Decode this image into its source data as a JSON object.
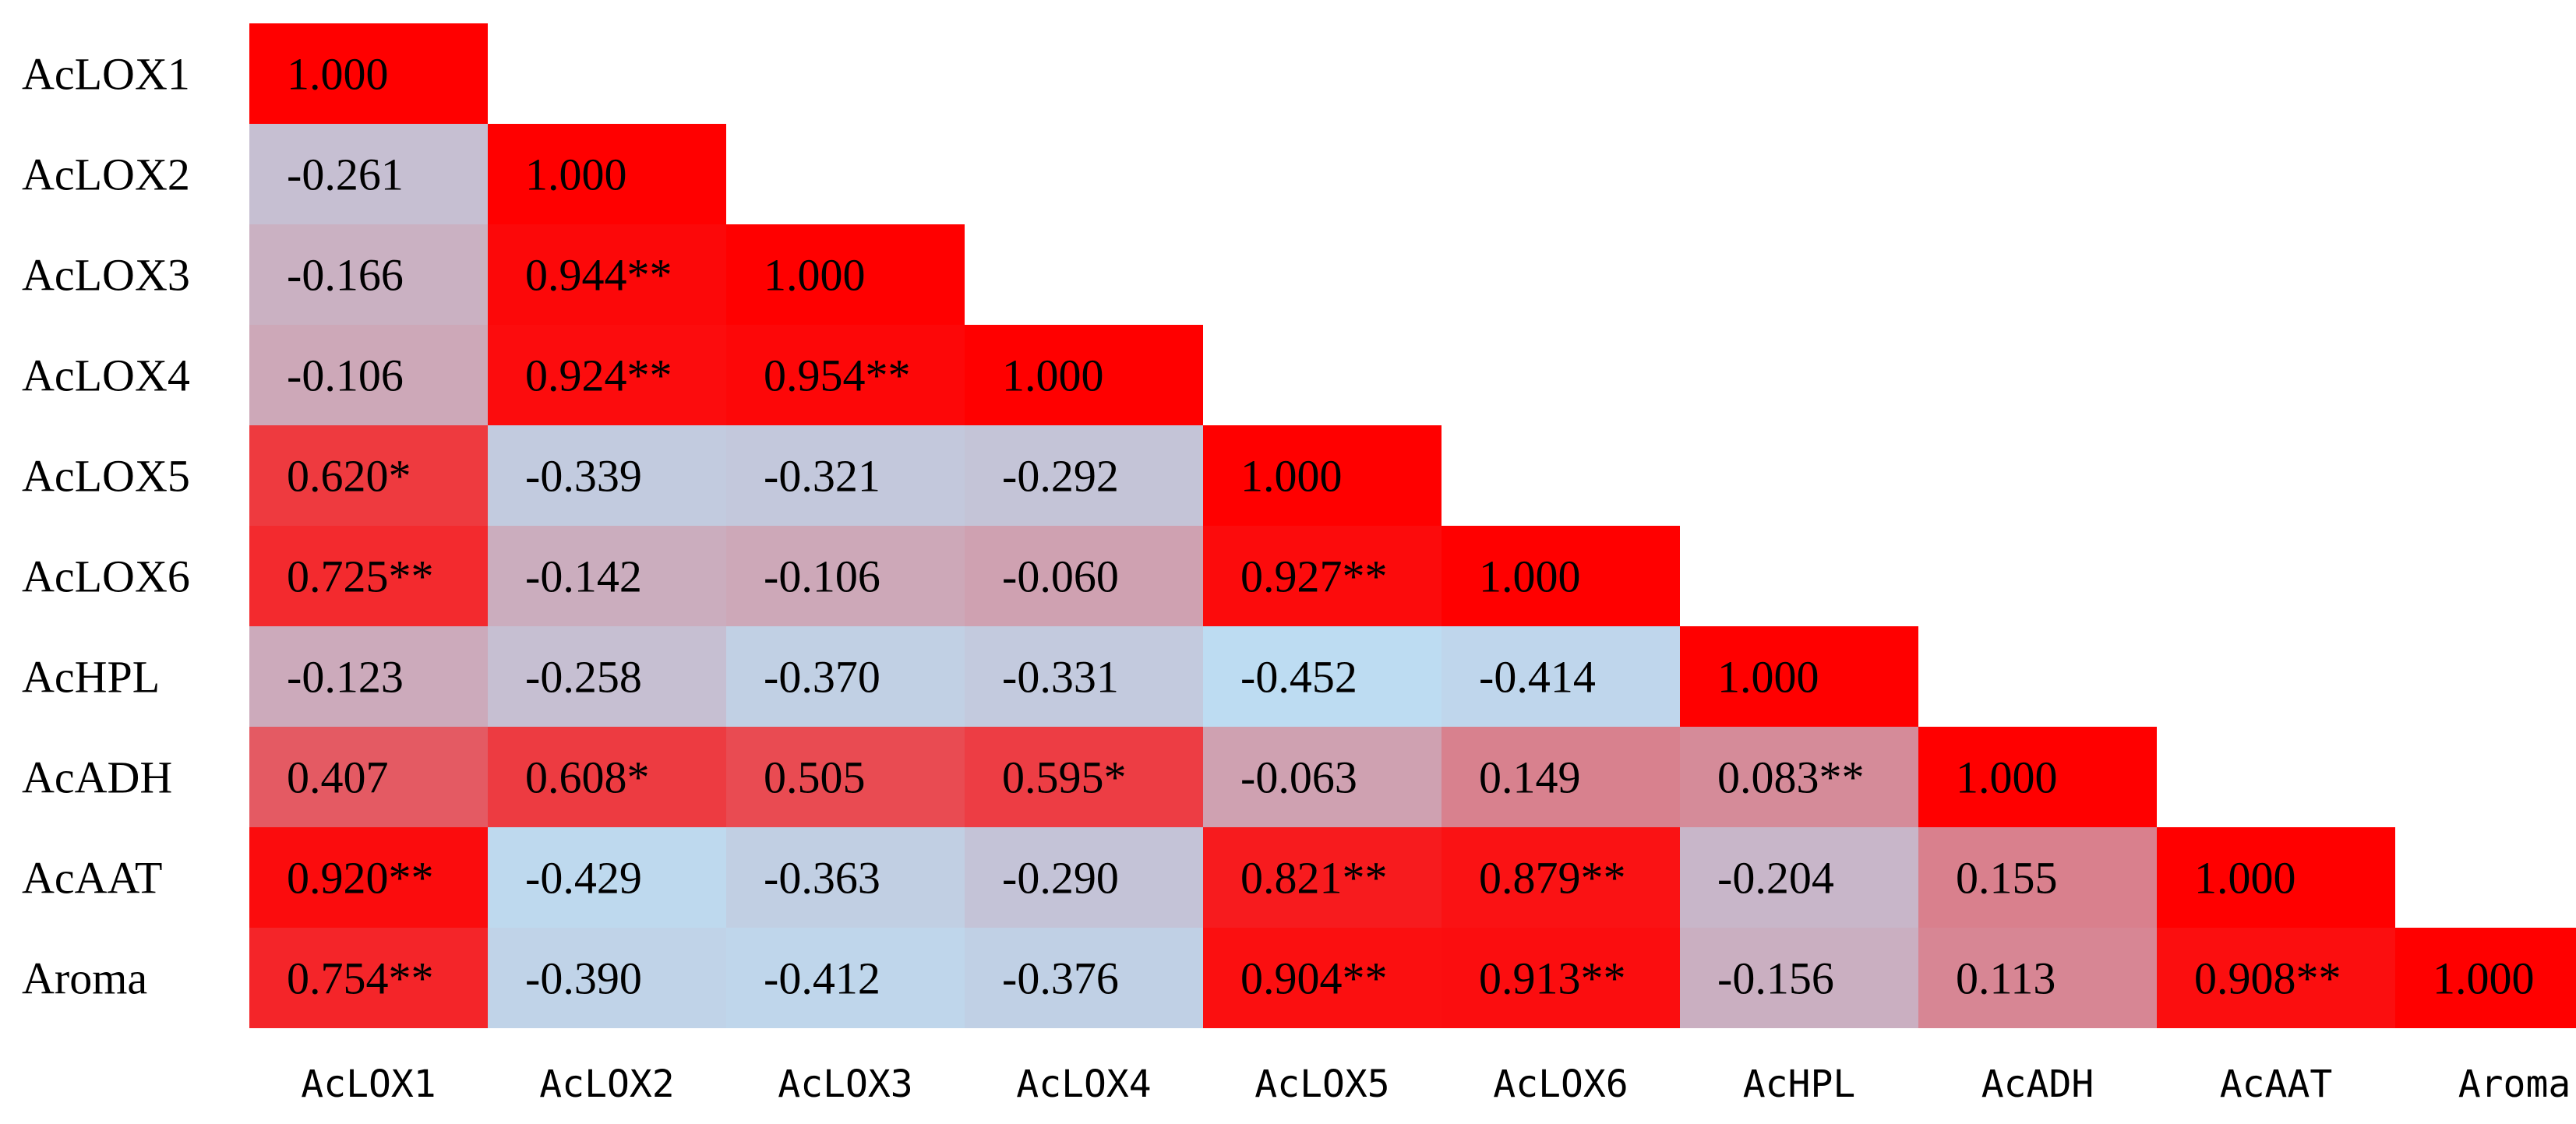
{
  "chart_data": {
    "type": "heatmap",
    "title": "",
    "xlabel": "",
    "ylabel": "",
    "rows": [
      "AcLOX1",
      "AcLOX2",
      "AcLOX3",
      "AcLOX4",
      "AcLOX5",
      "AcLOX6",
      "AcHPL",
      "AcADH",
      "AcAAT",
      "Aroma"
    ],
    "columns": [
      "AcLOX1",
      "AcLOX2",
      "AcLOX3",
      "AcLOX4",
      "AcLOX5",
      "AcLOX6",
      "AcHPL",
      "AcADH",
      "AcAAT",
      "Aroma"
    ],
    "triangle": "lower",
    "values": [
      [
        1.0
      ],
      [
        -0.261,
        1.0
      ],
      [
        -0.166,
        0.944,
        1.0
      ],
      [
        -0.106,
        0.924,
        0.954,
        1.0
      ],
      [
        0.62,
        -0.339,
        -0.321,
        -0.292,
        1.0
      ],
      [
        0.725,
        -0.142,
        -0.106,
        -0.06,
        0.927,
        1.0
      ],
      [
        -0.123,
        -0.258,
        -0.37,
        -0.331,
        -0.452,
        -0.414,
        1.0
      ],
      [
        0.407,
        0.608,
        0.505,
        0.595,
        -0.063,
        0.149,
        0.083,
        1.0
      ],
      [
        0.92,
        -0.429,
        -0.363,
        -0.29,
        0.821,
        0.879,
        -0.204,
        0.155,
        1.0
      ],
      [
        0.754,
        -0.39,
        -0.412,
        -0.376,
        0.904,
        0.913,
        -0.156,
        0.113,
        0.908,
        1.0
      ]
    ],
    "labels": [
      [
        "1.000"
      ],
      [
        "-0.261",
        "1.000"
      ],
      [
        "-0.166",
        "0.944**",
        "1.000"
      ],
      [
        "-0.106",
        "0.924**",
        "0.954**",
        "1.000"
      ],
      [
        "0.620*",
        "-0.339",
        "-0.321",
        "-0.292",
        "1.000"
      ],
      [
        "0.725**",
        "-0.142",
        "-0.106",
        "-0.060",
        "0.927**",
        "1.000"
      ],
      [
        "-0.123",
        "-0.258",
        "-0.370",
        "-0.331",
        "-0.452",
        "-0.414",
        "1.000"
      ],
      [
        "0.407",
        "0.608*",
        "0.505",
        "0.595*",
        "-0.063",
        "0.149",
        "0.083**",
        "1.000"
      ],
      [
        "0.920**",
        "-0.429",
        "-0.363",
        "-0.290",
        "0.821**",
        "0.879**",
        "-0.204",
        "0.155",
        "1.000"
      ],
      [
        "0.754**",
        "-0.390",
        "-0.412",
        "-0.376",
        "0.904**",
        "0.913**",
        "-0.156",
        "0.113",
        "0.908**",
        "1.000"
      ]
    ],
    "color_scale": {
      "low_value": -0.452,
      "low_color": "#BDDCF2",
      "high_value": 1.0,
      "high_color": "#FF0000"
    },
    "grid": false,
    "legend": "none"
  }
}
